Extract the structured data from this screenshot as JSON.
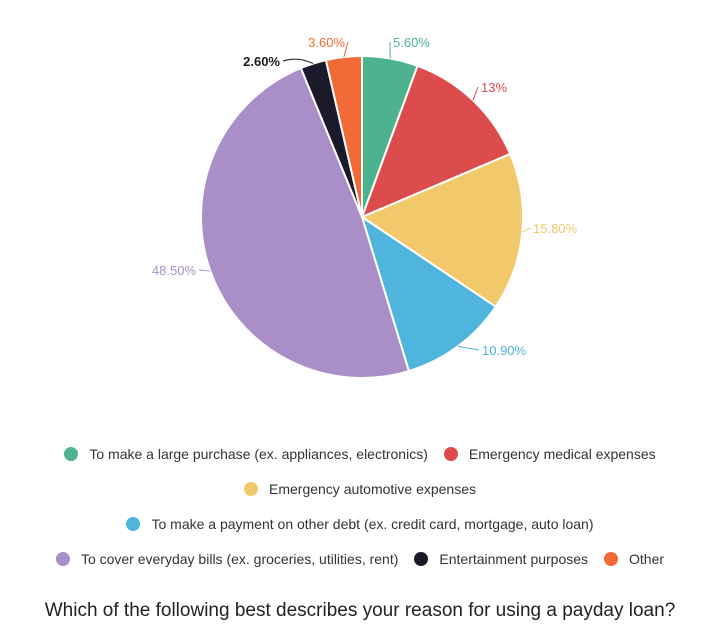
{
  "chart_data": {
    "type": "pie",
    "title": "Which of the following best describes your reason for using a payday loan?",
    "start_angle_deg": 0,
    "direction": "clockwise",
    "series": [
      {
        "name": "To make a large purchase (ex. appliances, electronics)",
        "value": 5.6,
        "label": "5.60%",
        "color": "#4db38f"
      },
      {
        "name": "Emergency medical expenses",
        "value": 13,
        "label": "13%",
        "color": "#dc4c4c"
      },
      {
        "name": "Emergency automotive expenses",
        "value": 15.8,
        "label": "15.80%",
        "color": "#f2c96a"
      },
      {
        "name": "To make a payment on other debt (ex. credit card, mortgage, auto loan)",
        "value": 10.9,
        "label": "10.90%",
        "color": "#4fb5dc"
      },
      {
        "name": "To cover everyday bills (ex. groceries, utilities, rent)",
        "value": 48.5,
        "label": "48.50%",
        "color": "#aa8ec7"
      },
      {
        "name": "Entertainment purposes",
        "value": 2.6,
        "label": "2.60%",
        "color": "#1a1a2a"
      },
      {
        "name": "Other",
        "value": 3.6,
        "label": "3.60%",
        "color": "#f26a35"
      }
    ],
    "legend": {
      "placement": "bottom",
      "rows": [
        [
          0,
          1
        ],
        [
          2
        ],
        [
          3
        ],
        [
          4,
          5,
          6
        ]
      ]
    }
  }
}
